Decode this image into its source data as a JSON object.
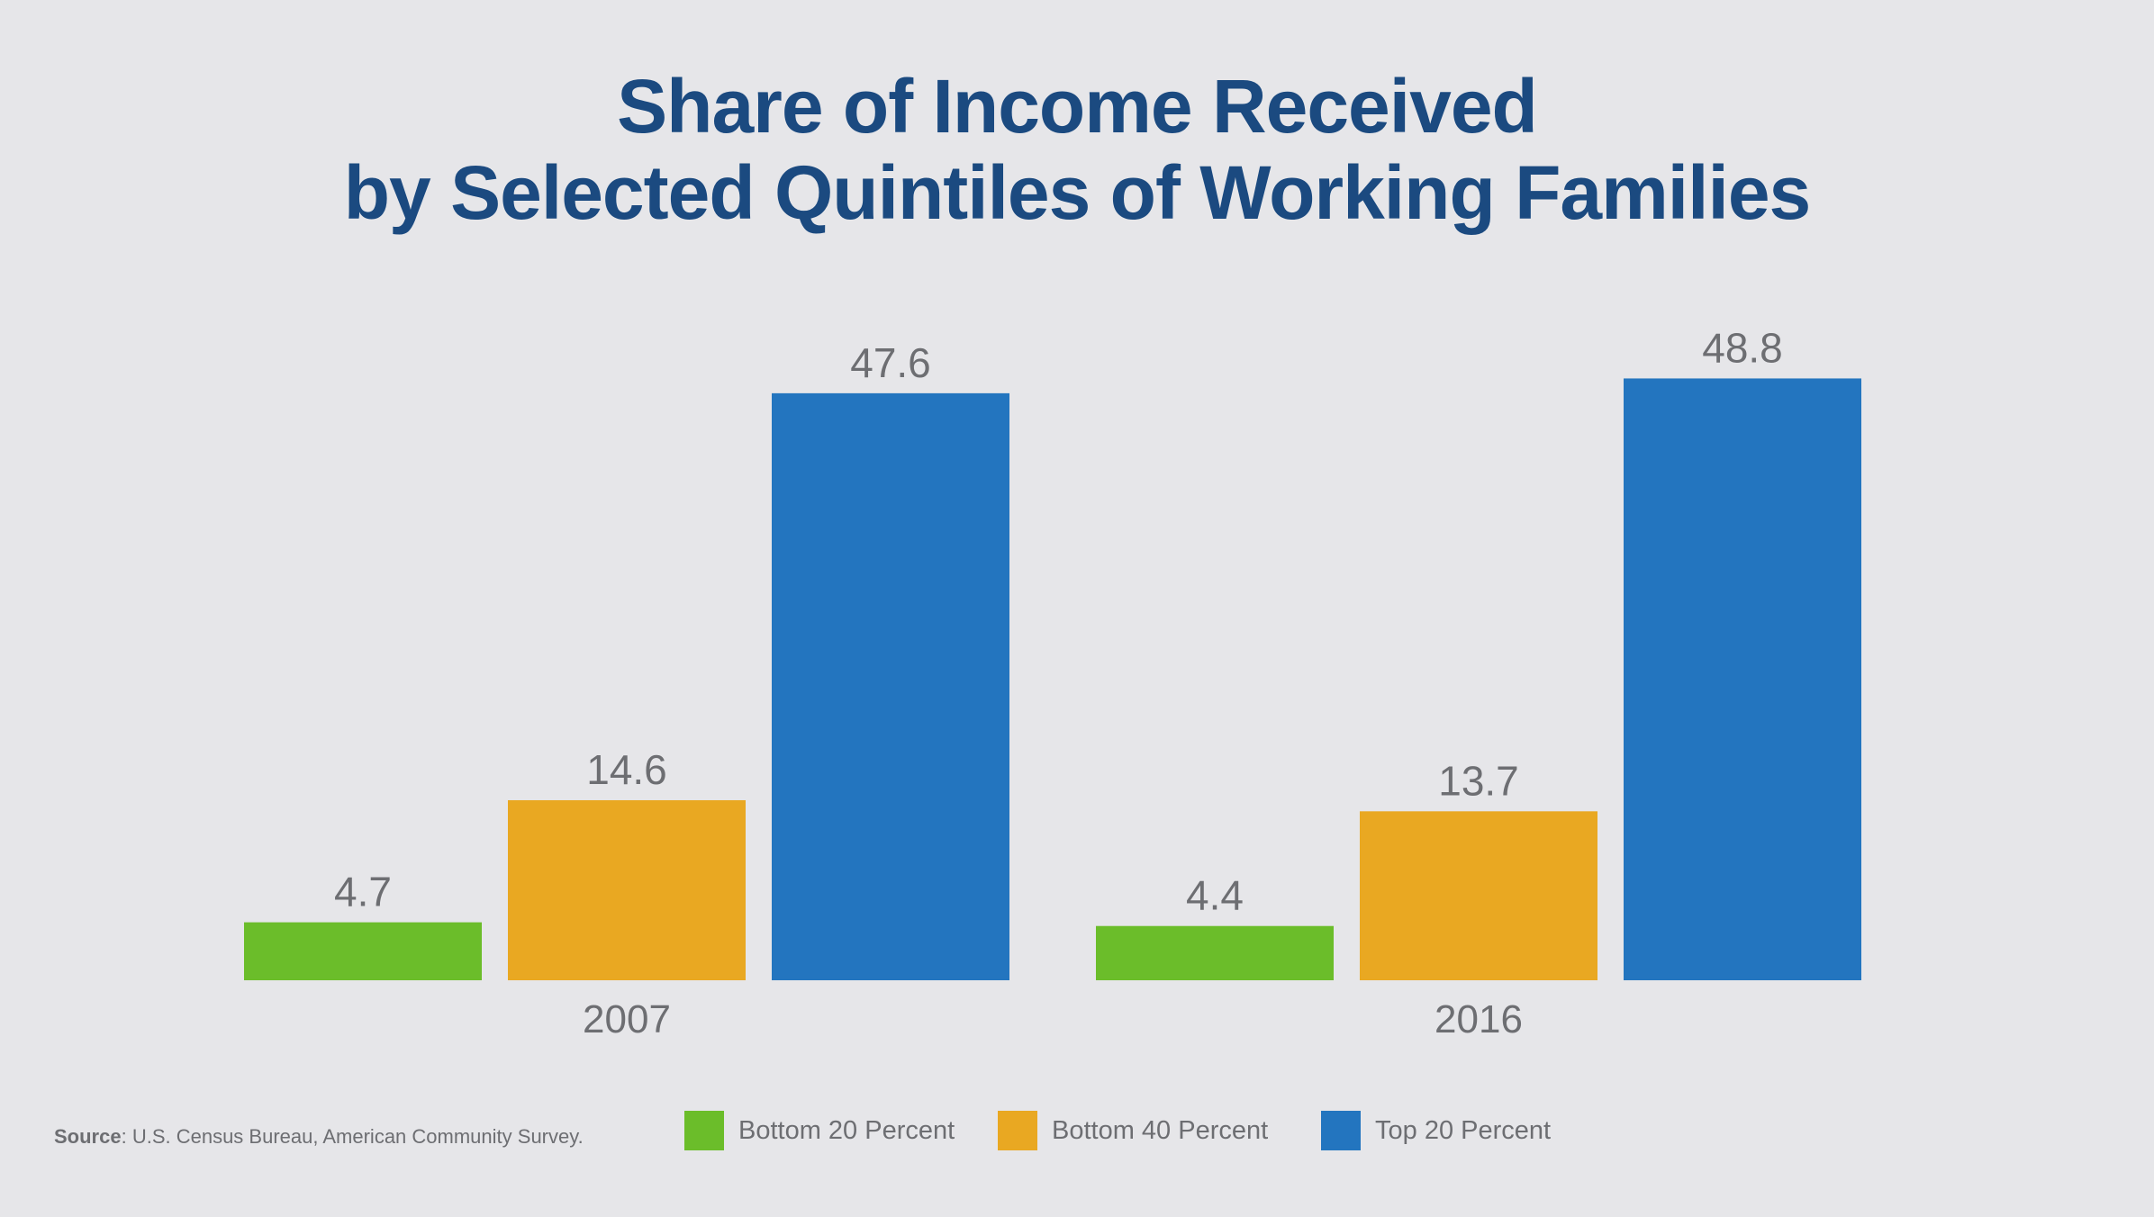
{
  "chart_data": {
    "type": "bar",
    "title_lines": [
      "Share of Income Received",
      "by Selected Quintiles of  Working Families"
    ],
    "categories": [
      "2007",
      "2016"
    ],
    "series": [
      {
        "name": "Bottom 20 Percent",
        "color": "#6bbd2a",
        "values": [
          4.7,
          4.4
        ]
      },
      {
        "name": "Bottom 40 Percent",
        "color": "#e9a822",
        "values": [
          14.6,
          13.7
        ]
      },
      {
        "name": "Top 20 Percent",
        "color": "#2375bf",
        "values": [
          47.6,
          48.8
        ]
      }
    ],
    "ylim": [
      0,
      50
    ],
    "grid": false,
    "legend_position": "bottom"
  },
  "source": {
    "label": "Source",
    "text": ": U.S. Census Bureau, American Community Survey."
  }
}
